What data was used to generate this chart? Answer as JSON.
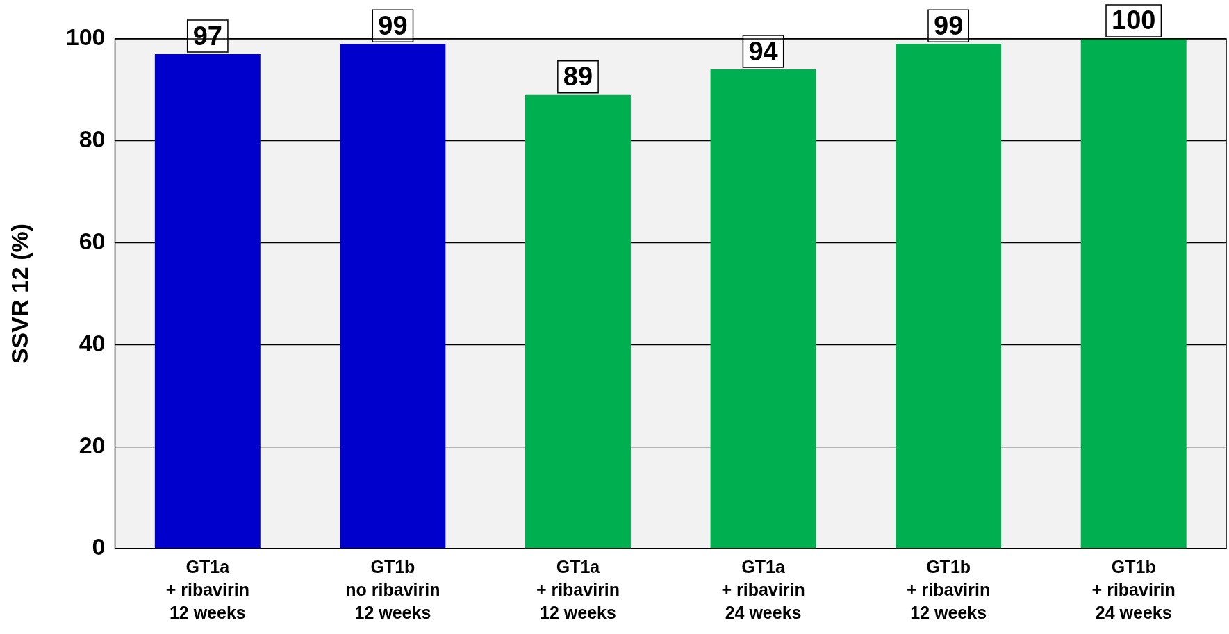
{
  "chart_data": {
    "type": "bar",
    "ylabel": "SSVR 12 (%)",
    "categories": [
      "GT1a\n+ ribavirin\n12 weeks",
      "GT1b\nno ribavirin\n12 weeks",
      "GT1a\n+ ribavirin\n12 weeks",
      "GT1a\n+ ribavirin\n24 weeks",
      "GT1b\n+ ribavirin\n12 weeks",
      "GT1b\n+ ribavirin\n24 weeks"
    ],
    "values": [
      97,
      99,
      89,
      94,
      99,
      100
    ],
    "colors": [
      "#0000cc",
      "#0000cc",
      "#00b050",
      "#00b050",
      "#00b050",
      "#00b050"
    ],
    "ylim": [
      0,
      100
    ],
    "yticks": [
      0,
      20,
      40,
      60,
      80,
      100
    ],
    "grid": "y",
    "data_labels": true,
    "legend": false
  }
}
